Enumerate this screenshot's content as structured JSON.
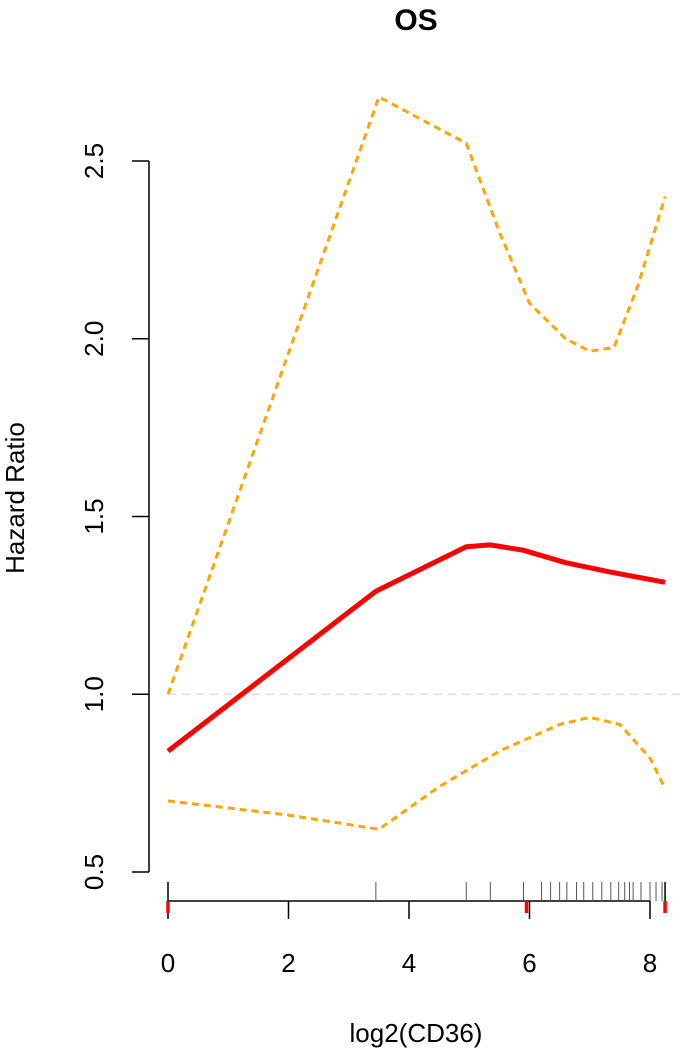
{
  "chart_data": {
    "type": "line",
    "title": "OS",
    "xlabel": "log2(CD36)",
    "ylabel": "Hazard Ratio",
    "xlim": [
      0,
      8.25
    ],
    "ylim": [
      0.5,
      2.75
    ],
    "xticks": [
      0,
      2,
      4,
      6,
      8
    ],
    "yticks": [
      0.5,
      1.0,
      1.5,
      2.0,
      2.5
    ],
    "xtick_labels": [
      "0",
      "2",
      "4",
      "6",
      "8"
    ],
    "ytick_labels": [
      "0.5",
      "1.0",
      "1.5",
      "2.0",
      "2.5"
    ],
    "reference_line": 1.0,
    "series": [
      {
        "role": "estimate",
        "color": "#ff0000",
        "style": "solid",
        "x": [
          0,
          3.45,
          4.95,
          5.35,
          5.9,
          6.6,
          7.3,
          8.25
        ],
        "y": [
          0.84,
          1.29,
          1.415,
          1.42,
          1.405,
          1.37,
          1.345,
          1.315
        ]
      },
      {
        "role": "upper",
        "color": "#ffa500",
        "style": "dashed",
        "x": [
          0,
          3.5,
          4.95,
          5.5,
          6.0,
          6.6,
          7.0,
          7.4,
          7.8,
          8.25
        ],
        "y": [
          1.0,
          2.68,
          2.55,
          2.3,
          2.1,
          2.0,
          1.965,
          1.975,
          2.15,
          2.4
        ]
      },
      {
        "role": "lower",
        "color": "#ffa500",
        "style": "dashed",
        "x": [
          0,
          2.0,
          3.5,
          4.5,
          5.5,
          6.5,
          7.0,
          7.5,
          8.0,
          8.25
        ],
        "y": [
          0.7,
          0.66,
          0.62,
          0.74,
          0.84,
          0.915,
          0.935,
          0.915,
          0.82,
          0.735
        ]
      }
    ],
    "rug_black": [
      3.45,
      4.95,
      5.35,
      5.9,
      6.2,
      6.35,
      6.5,
      6.62,
      6.78,
      6.9,
      7.05,
      7.2,
      7.35,
      7.48,
      7.58,
      7.66,
      7.72,
      7.85,
      8.0,
      8.1,
      8.2
    ],
    "rug_red": [
      0,
      5.95,
      8.25
    ],
    "grid": false,
    "legend": "none"
  }
}
